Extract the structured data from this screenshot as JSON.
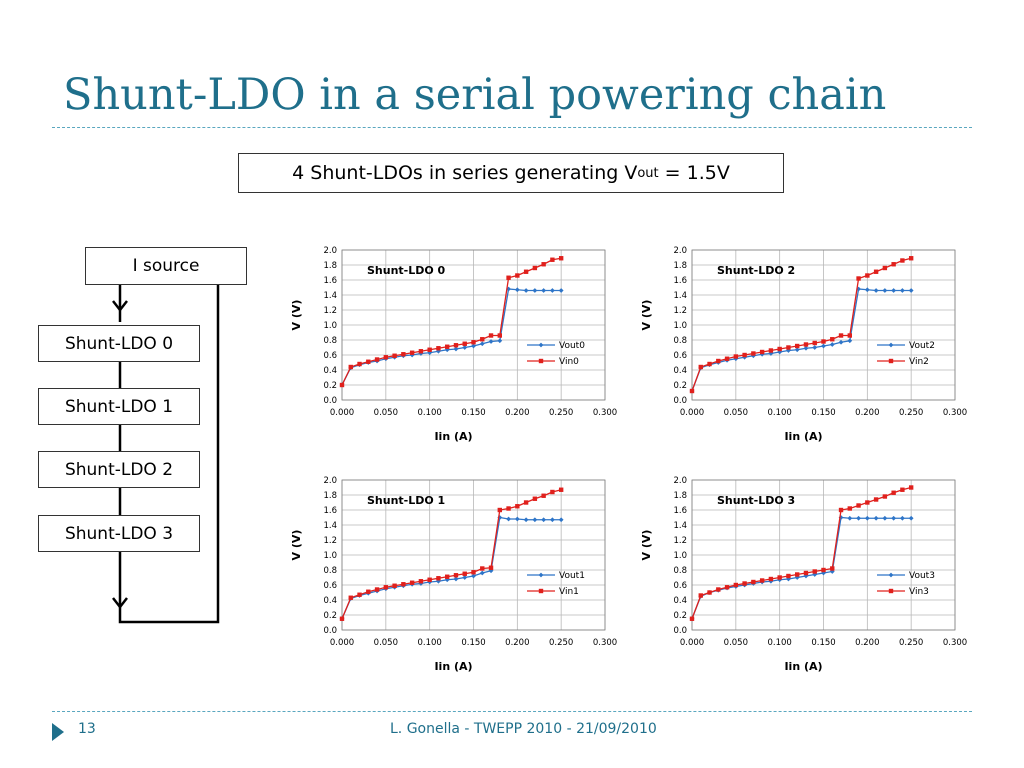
{
  "slide": {
    "title": "Shunt-LDO in a serial powering chain",
    "subtitle_text": "4 Shunt-LDOs in series generating V",
    "subtitle_sub": "out",
    "subtitle_tail": " = 1.5V",
    "footer_page": "13",
    "footer_text": "L. Gonella - TWEPP 2010 - 21/09/2010",
    "accent_color": "#1f6f8b"
  },
  "chain": {
    "source_label": "I source",
    "blocks": [
      "Shunt-LDO 0",
      "Shunt-LDO 1",
      "Shunt-LDO 2",
      "Shunt-LDO 3"
    ]
  },
  "chart_data": [
    {
      "type": "line",
      "title": "Shunt-LDO 0",
      "xlabel": "Iin (A)",
      "ylabel": "V (V)",
      "xlim": [
        0,
        0.3
      ],
      "ylim": [
        0,
        2.0
      ],
      "x_ticks": [
        "0.000",
        "0.050",
        "0.100",
        "0.150",
        "0.200",
        "0.250",
        "0.300"
      ],
      "y_ticks": [
        "0.0",
        "0.2",
        "0.4",
        "0.6",
        "0.8",
        "1.0",
        "1.2",
        "1.4",
        "1.6",
        "1.8",
        "2.0"
      ],
      "grid": true,
      "legend": "right",
      "series": [
        {
          "name": "Vout0",
          "color": "#2e75c8",
          "marker": "diamond",
          "x": [
            0,
            0.01,
            0.02,
            0.03,
            0.04,
            0.05,
            0.06,
            0.07,
            0.08,
            0.09,
            0.1,
            0.11,
            0.12,
            0.13,
            0.14,
            0.15,
            0.16,
            0.17,
            0.18,
            0.19,
            0.2,
            0.21,
            0.22,
            0.23,
            0.24,
            0.25
          ],
          "y": [
            0.2,
            0.43,
            0.47,
            0.5,
            0.52,
            0.55,
            0.57,
            0.59,
            0.6,
            0.62,
            0.63,
            0.65,
            0.67,
            0.68,
            0.7,
            0.72,
            0.75,
            0.78,
            0.79,
            1.48,
            1.47,
            1.46,
            1.46,
            1.46,
            1.46,
            1.46
          ]
        },
        {
          "name": "Vin0",
          "color": "#e0201c",
          "marker": "square",
          "x": [
            0,
            0.01,
            0.02,
            0.03,
            0.04,
            0.05,
            0.06,
            0.07,
            0.08,
            0.09,
            0.1,
            0.11,
            0.12,
            0.13,
            0.14,
            0.15,
            0.16,
            0.17,
            0.18,
            0.19,
            0.2,
            0.21,
            0.22,
            0.23,
            0.24,
            0.25
          ],
          "y": [
            0.2,
            0.44,
            0.48,
            0.51,
            0.54,
            0.57,
            0.59,
            0.61,
            0.63,
            0.65,
            0.67,
            0.69,
            0.71,
            0.73,
            0.75,
            0.77,
            0.81,
            0.86,
            0.86,
            1.63,
            1.66,
            1.71,
            1.76,
            1.81,
            1.87,
            1.89
          ]
        }
      ]
    },
    {
      "type": "line",
      "title": "Shunt-LDO 2",
      "xlabel": "Iin (A)",
      "ylabel": "V (V)",
      "xlim": [
        0,
        0.3
      ],
      "ylim": [
        0,
        2.0
      ],
      "x_ticks": [
        "0.000",
        "0.050",
        "0.100",
        "0.150",
        "0.200",
        "0.250",
        "0.300"
      ],
      "y_ticks": [
        "0.0",
        "0.2",
        "0.4",
        "0.6",
        "0.8",
        "1.0",
        "1.2",
        "1.4",
        "1.6",
        "1.8",
        "2.0"
      ],
      "grid": true,
      "legend": "right",
      "series": [
        {
          "name": "Vout2",
          "color": "#2e75c8",
          "marker": "diamond",
          "x": [
            0,
            0.01,
            0.02,
            0.03,
            0.04,
            0.05,
            0.06,
            0.07,
            0.08,
            0.09,
            0.1,
            0.11,
            0.12,
            0.13,
            0.14,
            0.15,
            0.16,
            0.17,
            0.18,
            0.19,
            0.2,
            0.21,
            0.22,
            0.23,
            0.24,
            0.25
          ],
          "y": [
            0.12,
            0.43,
            0.47,
            0.5,
            0.53,
            0.55,
            0.57,
            0.59,
            0.61,
            0.62,
            0.64,
            0.66,
            0.67,
            0.69,
            0.7,
            0.72,
            0.74,
            0.77,
            0.79,
            1.48,
            1.47,
            1.46,
            1.46,
            1.46,
            1.46,
            1.46
          ]
        },
        {
          "name": "Vin2",
          "color": "#e0201c",
          "marker": "square",
          "x": [
            0,
            0.01,
            0.02,
            0.03,
            0.04,
            0.05,
            0.06,
            0.07,
            0.08,
            0.09,
            0.1,
            0.11,
            0.12,
            0.13,
            0.14,
            0.15,
            0.16,
            0.17,
            0.18,
            0.19,
            0.2,
            0.21,
            0.22,
            0.23,
            0.24,
            0.25
          ],
          "y": [
            0.12,
            0.44,
            0.48,
            0.52,
            0.55,
            0.58,
            0.6,
            0.62,
            0.64,
            0.66,
            0.68,
            0.7,
            0.72,
            0.74,
            0.76,
            0.78,
            0.81,
            0.86,
            0.86,
            1.62,
            1.66,
            1.71,
            1.76,
            1.81,
            1.86,
            1.89
          ]
        }
      ]
    },
    {
      "type": "line",
      "title": "Shunt-LDO 1",
      "xlabel": "Iin (A)",
      "ylabel": "V (V)",
      "xlim": [
        0,
        0.3
      ],
      "ylim": [
        0,
        2.0
      ],
      "x_ticks": [
        "0.000",
        "0.050",
        "0.100",
        "0.150",
        "0.200",
        "0.250",
        "0.300"
      ],
      "y_ticks": [
        "0.0",
        "0.2",
        "0.4",
        "0.6",
        "0.8",
        "1.0",
        "1.2",
        "1.4",
        "1.6",
        "1.8",
        "2.0"
      ],
      "grid": true,
      "legend": "right",
      "series": [
        {
          "name": "Vout1",
          "color": "#2e75c8",
          "marker": "diamond",
          "x": [
            0,
            0.01,
            0.02,
            0.03,
            0.04,
            0.05,
            0.06,
            0.07,
            0.08,
            0.09,
            0.1,
            0.11,
            0.12,
            0.13,
            0.14,
            0.15,
            0.16,
            0.17,
            0.18,
            0.19,
            0.2,
            0.21,
            0.22,
            0.23,
            0.24,
            0.25
          ],
          "y": [
            0.15,
            0.42,
            0.46,
            0.49,
            0.52,
            0.55,
            0.57,
            0.59,
            0.61,
            0.62,
            0.64,
            0.65,
            0.67,
            0.68,
            0.7,
            0.72,
            0.76,
            0.79,
            1.5,
            1.48,
            1.48,
            1.47,
            1.47,
            1.47,
            1.47,
            1.47
          ]
        },
        {
          "name": "Vin1",
          "color": "#e0201c",
          "marker": "square",
          "x": [
            0,
            0.01,
            0.02,
            0.03,
            0.04,
            0.05,
            0.06,
            0.07,
            0.08,
            0.09,
            0.1,
            0.11,
            0.12,
            0.13,
            0.14,
            0.15,
            0.16,
            0.17,
            0.18,
            0.19,
            0.2,
            0.21,
            0.22,
            0.23,
            0.24,
            0.25
          ],
          "y": [
            0.15,
            0.43,
            0.47,
            0.51,
            0.54,
            0.57,
            0.59,
            0.61,
            0.63,
            0.65,
            0.67,
            0.69,
            0.71,
            0.73,
            0.75,
            0.77,
            0.82,
            0.83,
            1.6,
            1.62,
            1.65,
            1.7,
            1.75,
            1.79,
            1.84,
            1.87
          ]
        }
      ]
    },
    {
      "type": "line",
      "title": "Shunt-LDO 3",
      "xlabel": "Iin (A)",
      "ylabel": "V (V)",
      "xlim": [
        0,
        0.3
      ],
      "ylim": [
        0,
        2.0
      ],
      "x_ticks": [
        "0.000",
        "0.050",
        "0.100",
        "0.150",
        "0.200",
        "0.250",
        "0.300"
      ],
      "y_ticks": [
        "0.0",
        "0.2",
        "0.4",
        "0.6",
        "0.8",
        "1.0",
        "1.2",
        "1.4",
        "1.6",
        "1.8",
        "2.0"
      ],
      "grid": true,
      "legend": "right",
      "series": [
        {
          "name": "Vout3",
          "color": "#2e75c8",
          "marker": "diamond",
          "x": [
            0,
            0.01,
            0.02,
            0.03,
            0.04,
            0.05,
            0.06,
            0.07,
            0.08,
            0.09,
            0.1,
            0.11,
            0.12,
            0.13,
            0.14,
            0.15,
            0.16,
            0.17,
            0.18,
            0.19,
            0.2,
            0.21,
            0.22,
            0.23,
            0.24,
            0.25
          ],
          "y": [
            0.15,
            0.45,
            0.5,
            0.53,
            0.56,
            0.58,
            0.6,
            0.62,
            0.64,
            0.65,
            0.67,
            0.68,
            0.7,
            0.72,
            0.74,
            0.76,
            0.78,
            1.5,
            1.49,
            1.49,
            1.49,
            1.49,
            1.49,
            1.49,
            1.49,
            1.49
          ]
        },
        {
          "name": "Vin3",
          "color": "#e0201c",
          "marker": "square",
          "x": [
            0,
            0.01,
            0.02,
            0.03,
            0.04,
            0.05,
            0.06,
            0.07,
            0.08,
            0.09,
            0.1,
            0.11,
            0.12,
            0.13,
            0.14,
            0.15,
            0.16,
            0.17,
            0.18,
            0.19,
            0.2,
            0.21,
            0.22,
            0.23,
            0.24,
            0.25
          ],
          "y": [
            0.15,
            0.46,
            0.5,
            0.54,
            0.57,
            0.6,
            0.62,
            0.64,
            0.66,
            0.68,
            0.7,
            0.72,
            0.74,
            0.76,
            0.78,
            0.8,
            0.82,
            1.6,
            1.62,
            1.66,
            1.7,
            1.74,
            1.78,
            1.83,
            1.87,
            1.9
          ]
        }
      ]
    }
  ]
}
